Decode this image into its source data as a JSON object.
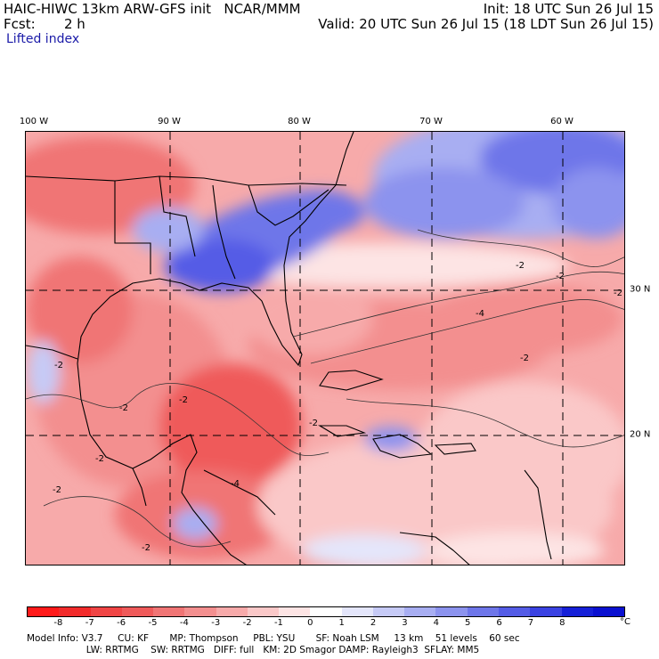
{
  "header": {
    "model_title": "HAIC-HIWC 13km ARW-GFS init   NCAR/MMM",
    "fcst_label": "Fcst:",
    "fcst_value": "2 h",
    "field_label": "Lifted index",
    "init_text": "Init: 18 UTC Sun 26 Jul 15",
    "valid_text": "Valid: 20 UTC Sun 26 Jul 15 (18 LDT Sun 26 Jul 15)"
  },
  "map": {
    "longitude_labels": [
      "100 W",
      "90 W",
      "80 W",
      "70 W",
      "60 W"
    ],
    "latitude_labels": [
      "30 N",
      "20 N"
    ],
    "contour_labels": [
      "-2",
      "-2",
      "-2",
      "-2",
      "-2",
      "-2",
      "-2",
      "-4",
      "-4",
      "-2",
      "-2",
      "-2",
      "-2"
    ]
  },
  "colorbar": {
    "colors": [
      "#ff1a1a",
      "#f22b2b",
      "#f04545",
      "#ef5a5a",
      "#f07575",
      "#f38f8f",
      "#f7aaaa",
      "#fac8c8",
      "#fde4e4",
      "#ffffff",
      "#e4e6fb",
      "#c6caf6",
      "#a8aef2",
      "#8c93ee",
      "#6e76e9",
      "#545ce6",
      "#3a42e2",
      "#1620d8",
      "#0a10d0"
    ],
    "tick_labels": [
      "-8",
      "-7",
      "-6",
      "-5",
      "-4",
      "-3",
      "-2",
      "-1",
      "0",
      "1",
      "2",
      "3",
      "4",
      "5",
      "6",
      "7",
      "8"
    ],
    "unit": "°C"
  },
  "footer": {
    "line1": "Model Info: V3.7     CU: KF       MP: Thompson     PBL: YSU       SF: Noah LSM     13 km    51 levels    60 sec",
    "line2": "                    LW: RRTMG    SW: RRTMG   DIFF: full   KM: 2D Smagor DAMP: Rayleigh3  SFLAY: MM5"
  }
}
